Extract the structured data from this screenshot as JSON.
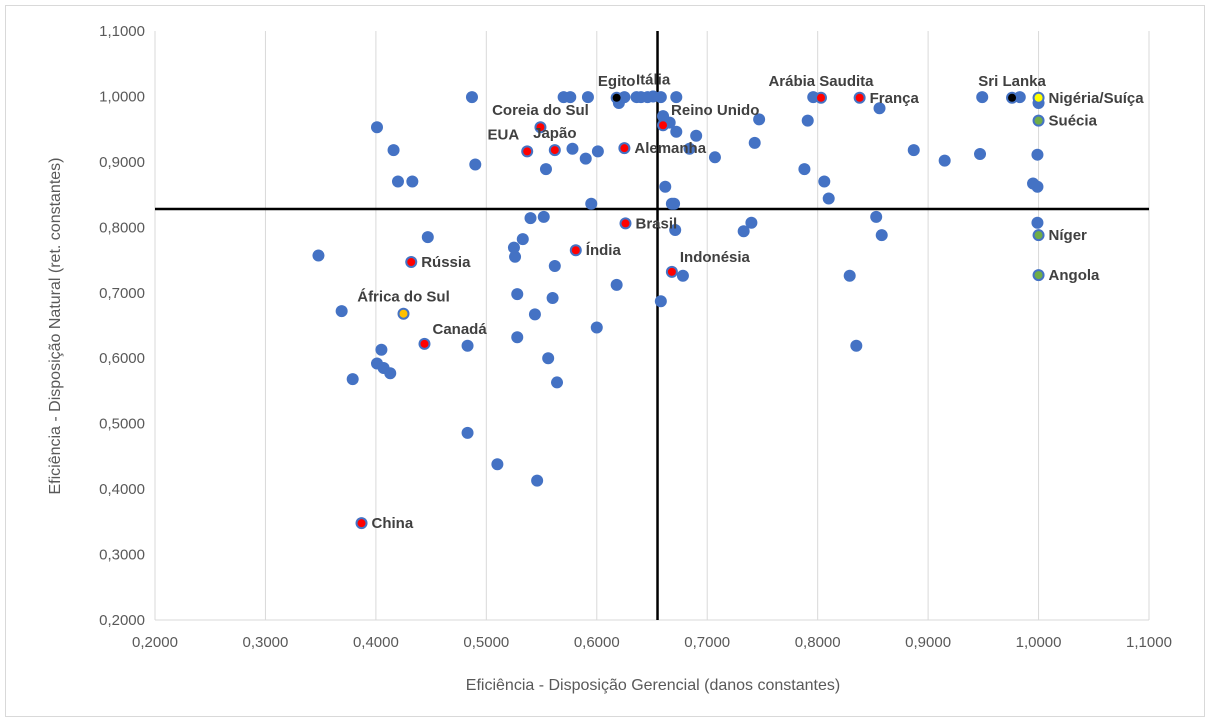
{
  "chart_data": {
    "type": "scatter",
    "xlabel": "Eficiência - Disposição Gerencial (danos constantes)",
    "ylabel": "Eficiência - Disposição Natural (ret. constantes)",
    "xlim": [
      0.2,
      1.1
    ],
    "ylim": [
      0.2,
      1.1
    ],
    "x_ticks": [
      "0,2000",
      "0,3000",
      "0,4000",
      "0,5000",
      "0,6000",
      "0,7000",
      "0,8000",
      "0,9000",
      "1,0000",
      "1,1000"
    ],
    "y_ticks": [
      "0,2000",
      "0,3000",
      "0,4000",
      "0,5000",
      "0,6000",
      "0,7000",
      "0,8000",
      "0,9000",
      "1,0000",
      "1,1000"
    ],
    "grid": "vertical",
    "reference_lines": {
      "x": 0.655,
      "y": 0.828
    },
    "colors": {
      "blue": "#4472c4",
      "red": "#ff0000",
      "orange": "#ffc000",
      "green": "#70ad47",
      "black": "#000000",
      "yellow": "#ffff00"
    },
    "labeled_points": [
      {
        "name": "China",
        "x": 0.387,
        "y": 0.348,
        "color": "red",
        "label_pos": "right"
      },
      {
        "name": "Canadá",
        "x": 0.444,
        "y": 0.622,
        "color": "red",
        "label_pos": "above-right"
      },
      {
        "name": "África do Sul",
        "x": 0.425,
        "y": 0.668,
        "color": "orange",
        "label_pos": "above"
      },
      {
        "name": "Rússia",
        "x": 0.432,
        "y": 0.747,
        "color": "red",
        "label_pos": "right"
      },
      {
        "name": "Índia",
        "x": 0.581,
        "y": 0.765,
        "color": "red",
        "label_pos": "right"
      },
      {
        "name": "Brasil",
        "x": 0.626,
        "y": 0.806,
        "color": "red",
        "label_pos": "right"
      },
      {
        "name": "Indonésia",
        "x": 0.668,
        "y": 0.732,
        "color": "red",
        "label_pos": "above-right"
      },
      {
        "name": "EUA",
        "x": 0.537,
        "y": 0.916,
        "color": "red",
        "label_pos": "above-left"
      },
      {
        "name": "Japão",
        "x": 0.562,
        "y": 0.918,
        "color": "red",
        "label_pos": "above"
      },
      {
        "name": "Alemanha",
        "x": 0.625,
        "y": 0.921,
        "color": "red",
        "label_pos": "right"
      },
      {
        "name": "Coreia do Sul",
        "x": 0.549,
        "y": 0.953,
        "color": "red",
        "label_pos": "above"
      },
      {
        "name": "Reino Unido",
        "x": 0.66,
        "y": 0.956,
        "color": "red",
        "label_pos": "above-right"
      },
      {
        "name": "Egito",
        "x": 0.618,
        "y": 0.998,
        "color": "black",
        "label_pos": "above"
      },
      {
        "name": "Itália",
        "x": 0.651,
        "y": 1.0,
        "color": "blue",
        "label_pos": "above"
      },
      {
        "name": "Arábia Saudita",
        "x": 0.803,
        "y": 0.998,
        "color": "red",
        "label_pos": "above"
      },
      {
        "name": "França",
        "x": 0.838,
        "y": 0.998,
        "color": "red",
        "label_pos": "right"
      },
      {
        "name": "Sri Lanka",
        "x": 0.976,
        "y": 0.998,
        "color": "black",
        "label_pos": "above"
      },
      {
        "name": "Nigéria/Suíça",
        "x": 1.0,
        "y": 0.998,
        "color": "yellow",
        "label_pos": "right"
      },
      {
        "name": "Suécia",
        "x": 1.0,
        "y": 0.963,
        "color": "green",
        "label_pos": "right"
      },
      {
        "name": "Níger",
        "x": 1.0,
        "y": 0.788,
        "color": "green",
        "label_pos": "right"
      },
      {
        "name": "Angola",
        "x": 1.0,
        "y": 0.727,
        "color": "green",
        "label_pos": "right"
      }
    ],
    "points": [
      [
        0.348,
        0.757
      ],
      [
        0.369,
        0.672
      ],
      [
        0.379,
        0.568
      ],
      [
        0.401,
        0.953
      ],
      [
        0.401,
        0.592
      ],
      [
        0.405,
        0.613
      ],
      [
        0.407,
        0.585
      ],
      [
        0.413,
        0.577
      ],
      [
        0.416,
        0.918
      ],
      [
        0.42,
        0.87
      ],
      [
        0.433,
        0.87
      ],
      [
        0.447,
        0.785
      ],
      [
        0.483,
        0.619
      ],
      [
        0.483,
        0.486
      ],
      [
        0.487,
        0.999
      ],
      [
        0.49,
        0.896
      ],
      [
        0.51,
        0.438
      ],
      [
        0.525,
        0.769
      ],
      [
        0.526,
        0.755
      ],
      [
        0.528,
        0.698
      ],
      [
        0.528,
        0.632
      ],
      [
        0.533,
        0.782
      ],
      [
        0.54,
        0.814
      ],
      [
        0.544,
        0.667
      ],
      [
        0.546,
        0.413
      ],
      [
        0.552,
        0.816
      ],
      [
        0.554,
        0.889
      ],
      [
        0.556,
        0.6
      ],
      [
        0.56,
        0.692
      ],
      [
        0.562,
        0.741
      ],
      [
        0.564,
        0.563
      ],
      [
        0.57,
        0.999
      ],
      [
        0.576,
        0.999
      ],
      [
        0.578,
        0.92
      ],
      [
        0.59,
        0.905
      ],
      [
        0.592,
        0.999
      ],
      [
        0.595,
        0.836
      ],
      [
        0.6,
        0.647
      ],
      [
        0.601,
        0.916
      ],
      [
        0.618,
        0.712
      ],
      [
        0.62,
        0.99
      ],
      [
        0.625,
        0.999
      ],
      [
        0.636,
        0.999
      ],
      [
        0.64,
        0.999
      ],
      [
        0.646,
        0.999
      ],
      [
        0.658,
        0.999
      ],
      [
        0.658,
        0.687
      ],
      [
        0.66,
        0.97
      ],
      [
        0.662,
        0.862
      ],
      [
        0.666,
        0.96
      ],
      [
        0.668,
        0.836
      ],
      [
        0.67,
        0.836
      ],
      [
        0.671,
        0.796
      ],
      [
        0.672,
        0.946
      ],
      [
        0.672,
        0.999
      ],
      [
        0.678,
        0.726
      ],
      [
        0.684,
        0.92
      ],
      [
        0.69,
        0.94
      ],
      [
        0.707,
        0.907
      ],
      [
        0.733,
        0.794
      ],
      [
        0.74,
        0.807
      ],
      [
        0.743,
        0.929
      ],
      [
        0.747,
        0.965
      ],
      [
        0.788,
        0.889
      ],
      [
        0.791,
        0.963
      ],
      [
        0.796,
        0.999
      ],
      [
        0.806,
        0.87
      ],
      [
        0.81,
        0.844
      ],
      [
        0.829,
        0.726
      ],
      [
        0.835,
        0.619
      ],
      [
        0.853,
        0.816
      ],
      [
        0.856,
        0.982
      ],
      [
        0.858,
        0.788
      ],
      [
        0.887,
        0.918
      ],
      [
        0.915,
        0.902
      ],
      [
        0.947,
        0.912
      ],
      [
        0.949,
        0.999
      ],
      [
        0.983,
        0.999
      ],
      [
        0.995,
        0.867
      ],
      [
        0.999,
        0.911
      ],
      [
        0.999,
        0.862
      ],
      [
        0.999,
        0.807
      ],
      [
        1.0,
        0.99
      ]
    ]
  }
}
